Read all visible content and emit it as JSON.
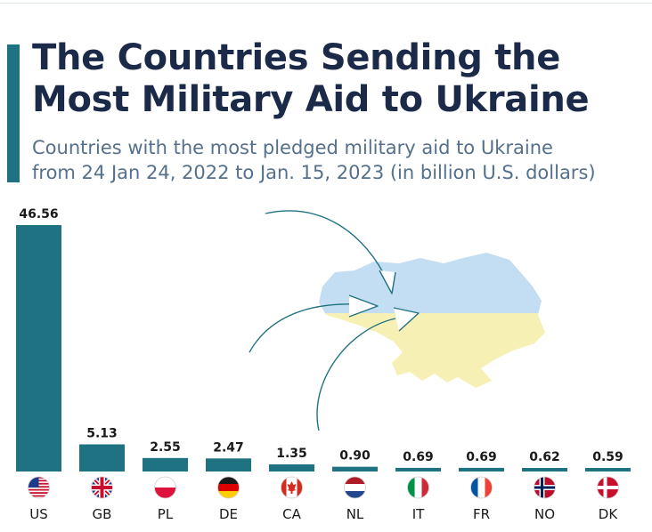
{
  "title": "The Countries Sending the Most Military Aid to Ukraine",
  "subtitle_line1": "Countries with the most pledged military aid to Ukraine",
  "subtitle_line2": "from 24 Jan 24, 2022 to Jan. 15, 2023  (in billion U.S. dollars)",
  "colors": {
    "bar": "#1f7282",
    "map_blue": "#c3ddf3",
    "map_yellow": "#f7f0b4",
    "title": "#1b2a48"
  },
  "chart_data": {
    "type": "bar",
    "title": "The Countries Sending the Most Military Aid to Ukraine",
    "subtitle": "Countries with the most pledged military aid to Ukraine from 24 Jan 24, 2022 to Jan. 15, 2023  (in billion U.S. dollars)",
    "categories": [
      "US",
      "GB",
      "PL",
      "DE",
      "CA",
      "NL",
      "IT",
      "FR",
      "NO",
      "DK"
    ],
    "values": [
      46.56,
      5.13,
      2.55,
      2.47,
      1.35,
      0.9,
      0.69,
      0.69,
      0.62,
      0.59
    ],
    "value_labels": [
      "46.56",
      "5.13",
      "2.55",
      "2.47",
      "1.35",
      "0.90",
      "0.69",
      "0.69",
      "0.62",
      "0.59"
    ],
    "ylim": [
      0,
      46.56
    ],
    "grid": false,
    "legend": "none"
  }
}
